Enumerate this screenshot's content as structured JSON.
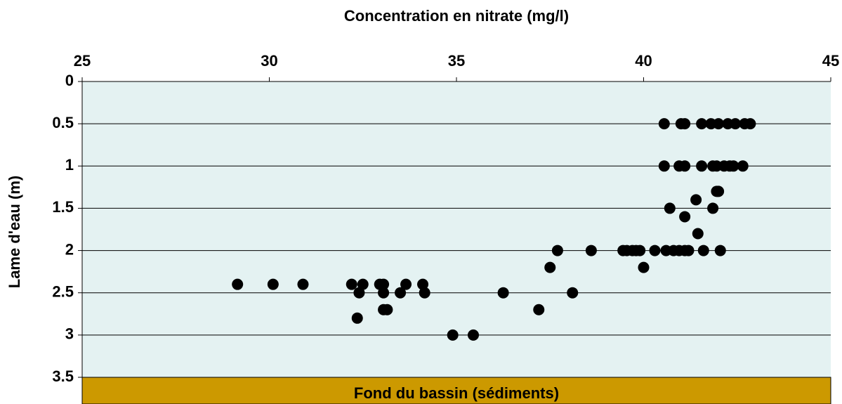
{
  "chart_data": {
    "type": "scatter",
    "x_label": "Concentration en nitrate (mg/l)",
    "y_label": "Lame d'eau (m)",
    "annotation": "Fond du bassin (sédiments)",
    "x_axis_position": "top",
    "y_inverted": true,
    "grid": true,
    "color": "#000000",
    "plot_background": "#e4f2f2",
    "annotation_color": "#cc9900",
    "xlim": [
      25,
      45
    ],
    "xticks": [
      25,
      30,
      35,
      40,
      45
    ],
    "ylim": [
      0,
      3.5
    ],
    "yticks": [
      0,
      0.5,
      1,
      1.5,
      2,
      2.5,
      3,
      3.5
    ],
    "x": [
      40.55,
      41.0,
      41.1,
      41.55,
      41.8,
      42.0,
      42.25,
      42.45,
      42.7,
      42.85,
      40.55,
      40.95,
      41.1,
      41.55,
      41.85,
      41.95,
      42.15,
      42.3,
      42.4,
      42.65,
      41.95,
      42.0,
      41.4,
      40.7,
      41.85,
      41.1,
      41.45,
      37.7,
      38.6,
      39.45,
      39.55,
      39.7,
      39.8,
      39.9,
      40.3,
      40.6,
      40.8,
      40.95,
      41.1,
      41.2,
      41.6,
      42.05,
      37.5,
      40.0,
      29.15,
      30.1,
      30.9,
      32.2,
      32.5,
      32.95,
      33.05,
      33.65,
      34.1,
      32.4,
      33.05,
      33.5,
      34.15,
      36.25,
      38.1,
      33.05,
      33.15,
      37.2,
      32.35,
      34.9,
      35.45
    ],
    "values": [
      0.5,
      0.5,
      0.5,
      0.5,
      0.5,
      0.5,
      0.5,
      0.5,
      0.5,
      0.5,
      1,
      1,
      1,
      1,
      1,
      1,
      1,
      1,
      1,
      1,
      1.3,
      1.3,
      1.4,
      1.5,
      1.5,
      1.6,
      1.8,
      2,
      2,
      2,
      2,
      2,
      2,
      2,
      2,
      2,
      2,
      2,
      2,
      2,
      2,
      2,
      2.2,
      2.2,
      2.4,
      2.4,
      2.4,
      2.4,
      2.4,
      2.4,
      2.4,
      2.4,
      2.4,
      2.5,
      2.5,
      2.5,
      2.5,
      2.5,
      2.5,
      2.7,
      2.7,
      2.7,
      2.8,
      3,
      3
    ]
  }
}
